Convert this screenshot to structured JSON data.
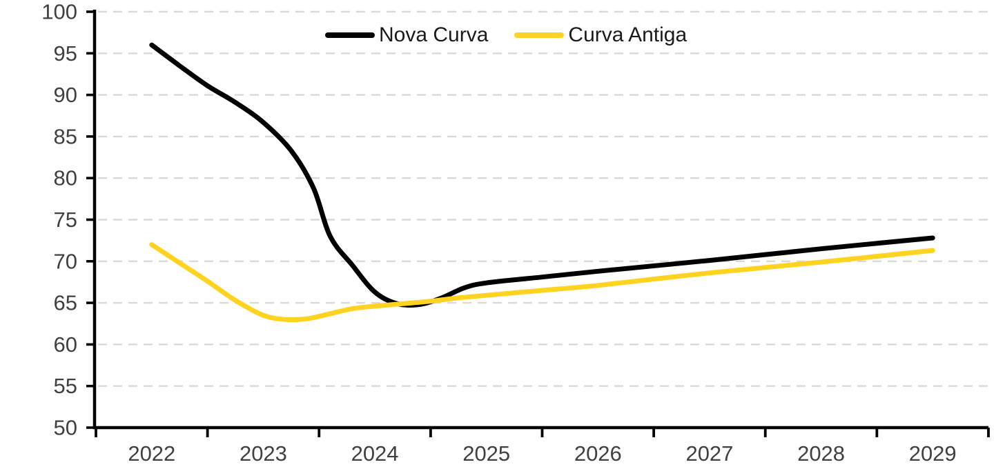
{
  "chart_data": {
    "type": "line",
    "title": "",
    "xlabel": "",
    "ylabel": "",
    "x_axis": {
      "range": [
        2021.5,
        2029.5
      ],
      "boundary_ticks": [
        2021.5,
        2022.5,
        2023.5,
        2024.5,
        2025.5,
        2026.5,
        2027.5,
        2028.5,
        2029.5
      ],
      "tick_label_years": [
        2022,
        2023,
        2024,
        2025,
        2026,
        2027,
        2028,
        2029
      ],
      "tick_labels": [
        "2022",
        "2023",
        "2024",
        "2025",
        "2026",
        "2027",
        "2028",
        "2029"
      ]
    },
    "y_axis": {
      "range": [
        50,
        100
      ],
      "tick_step": 5,
      "tick_values": [
        50,
        55,
        60,
        65,
        70,
        75,
        80,
        85,
        90,
        95,
        100
      ],
      "tick_labels": [
        "50",
        "55",
        "60",
        "65",
        "70",
        "75",
        "80",
        "85",
        "90",
        "95",
        "100"
      ]
    },
    "grid": {
      "horizontal_dashed": true,
      "color": "#D9D9D9"
    },
    "legend_position": "top-center",
    "series": [
      {
        "name": "Nova Curva",
        "color": "#000000",
        "points": [
          [
            2022.0,
            96.0
          ],
          [
            2022.25,
            93.5
          ],
          [
            2022.5,
            91.1
          ],
          [
            2022.75,
            89.1
          ],
          [
            2023.0,
            86.7
          ],
          [
            2023.25,
            83.3
          ],
          [
            2023.45,
            78.8
          ],
          [
            2023.6,
            73.0
          ],
          [
            2023.8,
            69.5
          ],
          [
            2024.0,
            66.3
          ],
          [
            2024.2,
            64.9
          ],
          [
            2024.4,
            64.8
          ],
          [
            2024.6,
            65.6
          ],
          [
            2024.8,
            66.8
          ],
          [
            2025.0,
            67.4
          ],
          [
            2025.5,
            68.1
          ],
          [
            2026.0,
            68.8
          ],
          [
            2027.0,
            70.1
          ],
          [
            2028.0,
            71.5
          ],
          [
            2029.0,
            72.8
          ]
        ]
      },
      {
        "name": "Curva Antiga",
        "color": "#FFD320",
        "points": [
          [
            2022.0,
            72.0
          ],
          [
            2022.25,
            69.8
          ],
          [
            2022.5,
            67.6
          ],
          [
            2022.75,
            65.3
          ],
          [
            2023.0,
            63.5
          ],
          [
            2023.2,
            63.0
          ],
          [
            2023.4,
            63.1
          ],
          [
            2023.6,
            63.7
          ],
          [
            2023.8,
            64.3
          ],
          [
            2024.0,
            64.6
          ],
          [
            2024.25,
            64.9
          ],
          [
            2024.5,
            65.2
          ],
          [
            2024.75,
            65.6
          ],
          [
            2025.0,
            65.9
          ],
          [
            2025.5,
            66.5
          ],
          [
            2026.0,
            67.1
          ],
          [
            2027.0,
            68.6
          ],
          [
            2028.0,
            69.9
          ],
          [
            2029.0,
            71.3
          ]
        ]
      }
    ]
  },
  "styles": {
    "background": "#FFFFFF",
    "axis_color": "#000000",
    "grid_color": "#D9D9D9",
    "tick_label_color": "#404040",
    "legend_text_color": "#1A1A1A"
  }
}
